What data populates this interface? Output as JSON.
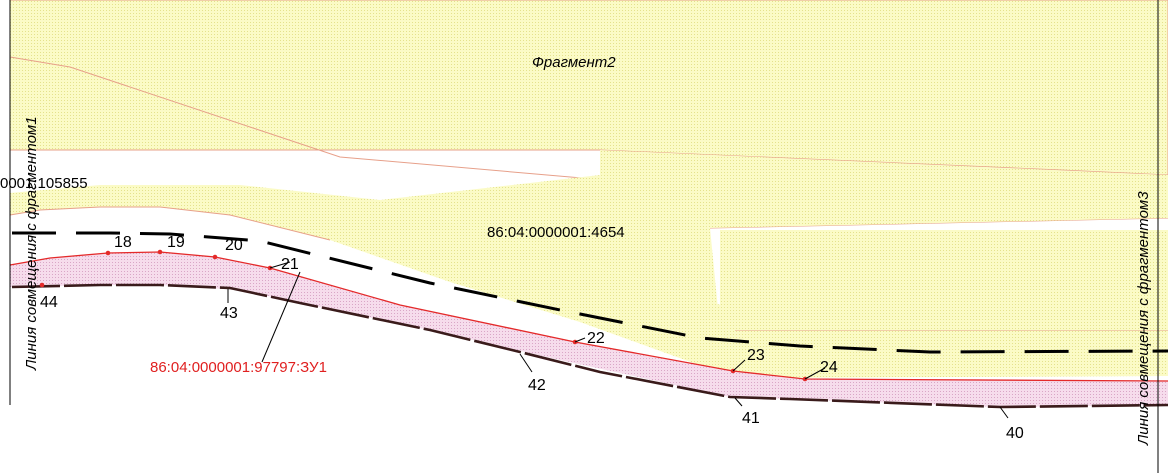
{
  "fragment_title": "Фрагмент2",
  "left_junction_label": "Линия совмещения с фрагментом1",
  "right_junction_label": "Линия совмещения с фрагментом3",
  "parcel_label_left": "0001:105855",
  "parcel_label_center": "86:04:0000001:4654",
  "cadastral_label": "86:04:0000001:97797:ЗУ1",
  "point_labels": [
    "18",
    "19",
    "20",
    "21",
    "22",
    "23",
    "24",
    "40",
    "41",
    "42",
    "43",
    "44"
  ],
  "colors": {
    "yellow_fill": "#fbfbc6",
    "yellow_border": "#e7a08a",
    "pink_fill": "#f4d9ec",
    "red_line": "#e42a2a",
    "red_text": "#e02020",
    "black_dash": "#000000",
    "dark_dash": "#3a1b1b"
  }
}
